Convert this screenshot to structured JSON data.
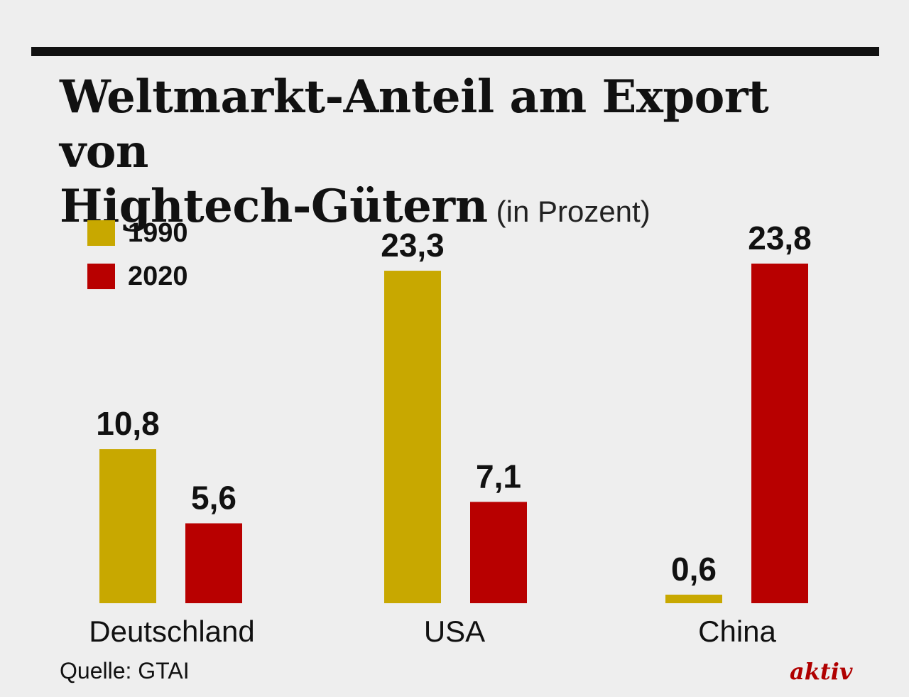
{
  "title": {
    "line1": "Weltmarkt-Anteil am Export von",
    "line2": "Hightech-Gütern",
    "unit": "(in Prozent)"
  },
  "legend": [
    {
      "label": "1990",
      "color": "#c8a800"
    },
    {
      "label": "2020",
      "color": "#b80000"
    }
  ],
  "chart_data": {
    "type": "bar",
    "title": "Weltmarkt-Anteil am Export von Hightech-Gütern (in Prozent)",
    "categories": [
      "Deutschland",
      "USA",
      "China"
    ],
    "series": [
      {
        "name": "1990",
        "color": "#c8a800",
        "values": [
          10.8,
          23.3,
          0.6
        ],
        "labels": [
          "10,8",
          "23,3",
          "0,6"
        ]
      },
      {
        "name": "2020",
        "color": "#b80000",
        "values": [
          5.6,
          7.1,
          23.8
        ],
        "labels": [
          "5,6",
          "7,1",
          "23,8"
        ]
      }
    ],
    "xlabel": "",
    "ylabel": "",
    "ylim": [
      0,
      23.8
    ],
    "grid": false,
    "legend_position": "top-left"
  },
  "source": "Quelle: GTAI",
  "brand": "aktiv"
}
